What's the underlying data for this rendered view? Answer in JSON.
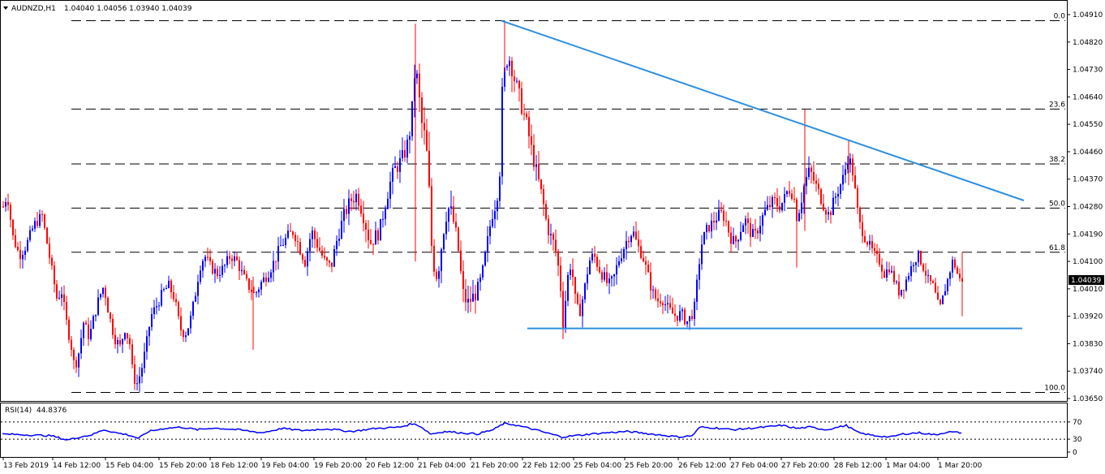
{
  "header": {
    "symbol": "AUDNZD,H1",
    "ohlc": "1.04040 1.04056 1.03940 1.04039"
  },
  "rsi_header": {
    "label": "RSI(14)",
    "value": "44.8376"
  },
  "colors": {
    "bull": "#0000ff",
    "bear": "#ff0000",
    "trendline": "#2e8fe0",
    "grid": "#000000",
    "rsi_line": "#0000ff"
  },
  "chart_data": [
    {
      "type": "candlestick",
      "title": "AUDNZD,H1",
      "yaxis_ticks": [
        "1.04910",
        "1.04820",
        "1.04730",
        "1.04640",
        "1.04550",
        "1.04460",
        "1.04370",
        "1.04280",
        "1.04190",
        "1.04100",
        "1.04010",
        "1.03920",
        "1.03830",
        "1.03740",
        "1.03650"
      ],
      "ylim": [
        1.0363,
        1.0493
      ],
      "x_tick_labels": [
        "13 Feb 2019",
        "14 Feb 12:00",
        "15 Feb 04:00",
        "15 Feb 20:00",
        "18 Feb 12:00",
        "19 Feb 04:00",
        "19 Feb 20:00",
        "20 Feb 12:00",
        "21 Feb 04:00",
        "21 Feb 20:00",
        "22 Feb 12:00",
        "25 Feb 04:00",
        "25 Feb 20:00",
        "26 Feb 12:00",
        "27 Feb 04:00",
        "27 Feb 20:00",
        "28 Feb 12:00",
        "1 Mar 04:00",
        "1 Mar 20:00"
      ],
      "current_price": "1.04039",
      "fibonacci_levels": [
        {
          "label": "0.0",
          "price": 1.0489
        },
        {
          "label": "23.6",
          "price": 1.046
        },
        {
          "label": "38.2",
          "price": 1.0442
        },
        {
          "label": "50.0",
          "price": 1.04275
        },
        {
          "label": "61.8",
          "price": 1.0413
        },
        {
          "label": "100.0",
          "price": 1.0367
        }
      ],
      "trendlines": [
        {
          "name": "resistance",
          "from": {
            "x": "21 Feb 21:00",
            "y": 1.0489
          },
          "to": {
            "x": "1 Mar 22:00",
            "y": 1.043
          }
        },
        {
          "name": "support",
          "from": {
            "x": "22 Feb 13:00",
            "y": 1.0388
          },
          "to": {
            "x": "1 Mar 23:00",
            "y": 1.0388
          }
        }
      ],
      "close_path": [
        [
          0,
          1.0428
        ],
        [
          5,
          1.0432
        ],
        [
          12,
          1.0418
        ],
        [
          20,
          1.0412
        ],
        [
          28,
          1.0415
        ],
        [
          38,
          1.0422
        ],
        [
          48,
          1.0425
        ],
        [
          58,
          1.041
        ],
        [
          66,
          1.0398
        ],
        [
          72,
          1.04
        ],
        [
          78,
          1.039
        ],
        [
          84,
          1.0382
        ],
        [
          88,
          1.0375
        ],
        [
          93,
          1.038
        ],
        [
          99,
          1.039
        ],
        [
          106,
          1.0385
        ],
        [
          112,
          1.0392
        ],
        [
          118,
          1.0398
        ],
        [
          124,
          1.0402
        ],
        [
          130,
          1.0393
        ],
        [
          137,
          1.0385
        ],
        [
          144,
          1.0382
        ],
        [
          150,
          1.0388
        ],
        [
          156,
          1.0383
        ],
        [
          160,
          1.0372
        ],
        [
          165,
          1.037
        ],
        [
          170,
          1.0374
        ],
        [
          176,
          1.0382
        ],
        [
          182,
          1.0392
        ],
        [
          190,
          1.0396
        ],
        [
          197,
          1.04
        ],
        [
          204,
          1.0402
        ],
        [
          211,
          1.0398
        ],
        [
          218,
          1.0388
        ],
        [
          224,
          1.0386
        ],
        [
          230,
          1.039
        ],
        [
          236,
          1.0398
        ],
        [
          242,
          1.0408
        ],
        [
          248,
          1.0412
        ],
        [
          256,
          1.0408
        ],
        [
          264,
          1.0406
        ],
        [
          272,
          1.0408
        ],
        [
          280,
          1.0412
        ],
        [
          288,
          1.041
        ],
        [
          296,
          1.0405
        ],
        [
          302,
          1.0402
        ],
        [
          310,
          1.0399
        ],
        [
          318,
          1.0403
        ],
        [
          326,
          1.0406
        ],
        [
          334,
          1.041
        ],
        [
          342,
          1.0415
        ],
        [
          350,
          1.0418
        ],
        [
          358,
          1.042
        ],
        [
          366,
          1.0414
        ],
        [
          372,
          1.041
        ],
        [
          380,
          1.042
        ],
        [
          388,
          1.0415
        ],
        [
          396,
          1.041
        ],
        [
          404,
          1.0408
        ],
        [
          412,
          1.0418
        ],
        [
          420,
          1.0425
        ],
        [
          428,
          1.043
        ],
        [
          436,
          1.0432
        ],
        [
          444,
          1.0425
        ],
        [
          452,
          1.0416
        ],
        [
          458,
          1.0418
        ],
        [
          464,
          1.042
        ],
        [
          470,
          1.0428
        ],
        [
          476,
          1.0435
        ],
        [
          482,
          1.044
        ],
        [
          488,
          1.0442
        ],
        [
          494,
          1.0445
        ],
        [
          500,
          1.045
        ],
        [
          504,
          1.046
        ],
        [
          508,
          1.0475
        ],
        [
          512,
          1.0465
        ],
        [
          516,
          1.0455
        ],
        [
          520,
          1.045
        ],
        [
          524,
          1.044
        ],
        [
          527,
          1.0418
        ],
        [
          530,
          1.041
        ],
        [
          535,
          1.0405
        ],
        [
          540,
          1.0415
        ],
        [
          545,
          1.0425
        ],
        [
          550,
          1.0428
        ],
        [
          556,
          1.0422
        ],
        [
          562,
          1.0412
        ],
        [
          566,
          1.04
        ],
        [
          572,
          1.0396
        ],
        [
          578,
          1.0398
        ],
        [
          584,
          1.04
        ],
        [
          590,
          1.0405
        ],
        [
          596,
          1.0415
        ],
        [
          602,
          1.0425
        ],
        [
          608,
          1.043
        ],
        [
          612,
          1.044
        ],
        [
          615,
          1.0465
        ],
        [
          618,
          1.0472
        ],
        [
          622,
          1.0478
        ],
        [
          626,
          1.0475
        ],
        [
          630,
          1.047
        ],
        [
          634,
          1.0466
        ],
        [
          638,
          1.0462
        ],
        [
          642,
          1.0458
        ],
        [
          646,
          1.0454
        ],
        [
          650,
          1.0448
        ],
        [
          655,
          1.0442
        ],
        [
          660,
          1.0436
        ],
        [
          665,
          1.043
        ],
        [
          670,
          1.0422
        ],
        [
          675,
          1.0418
        ],
        [
          680,
          1.0415
        ],
        [
          686,
          1.0405
        ],
        [
          690,
          1.039
        ],
        [
          694,
          1.04
        ],
        [
          698,
          1.041
        ],
        [
          702,
          1.0405
        ],
        [
          706,
          1.0395
        ],
        [
          710,
          1.0393
        ],
        [
          716,
          1.04
        ],
        [
          722,
          1.041
        ],
        [
          728,
          1.0412
        ],
        [
          734,
          1.0408
        ],
        [
          740,
          1.0405
        ],
        [
          746,
          1.0402
        ],
        [
          752,
          1.0404
        ],
        [
          758,
          1.041
        ],
        [
          764,
          1.0414
        ],
        [
          770,
          1.0418
        ],
        [
          776,
          1.042
        ],
        [
          782,
          1.0415
        ],
        [
          788,
          1.0412
        ],
        [
          794,
          1.0406
        ],
        [
          800,
          1.04
        ],
        [
          806,
          1.0397
        ],
        [
          812,
          1.0398
        ],
        [
          818,
          1.0395
        ],
        [
          824,
          1.0393
        ],
        [
          830,
          1.0392
        ],
        [
          836,
          1.0393
        ],
        [
          842,
          1.039
        ],
        [
          848,
          1.0392
        ],
        [
          852,
          1.0395
        ],
        [
          856,
          1.0405
        ],
        [
          860,
          1.0415
        ],
        [
          866,
          1.042
        ],
        [
          872,
          1.0422
        ],
        [
          878,
          1.0424
        ],
        [
          884,
          1.0426
        ],
        [
          890,
          1.0424
        ],
        [
          896,
          1.0418
        ],
        [
          902,
          1.0416
        ],
        [
          908,
          1.042
        ],
        [
          914,
          1.0424
        ],
        [
          920,
          1.042
        ],
        [
          926,
          1.0418
        ],
        [
          932,
          1.0422
        ],
        [
          938,
          1.0426
        ],
        [
          944,
          1.0428
        ],
        [
          950,
          1.043
        ],
        [
          956,
          1.0428
        ],
        [
          962,
          1.043
        ],
        [
          968,
          1.0434
        ],
        [
          974,
          1.0432
        ],
        [
          978,
          1.0425
        ],
        [
          982,
          1.0428
        ],
        [
          988,
          1.0436
        ],
        [
          994,
          1.044
        ],
        [
          1000,
          1.0436
        ],
        [
          1006,
          1.0432
        ],
        [
          1012,
          1.0428
        ],
        [
          1018,
          1.0425
        ],
        [
          1024,
          1.043
        ],
        [
          1030,
          1.0434
        ],
        [
          1036,
          1.0438
        ],
        [
          1042,
          1.0445
        ],
        [
          1048,
          1.0438
        ],
        [
          1052,
          1.0428
        ],
        [
          1056,
          1.0422
        ],
        [
          1062,
          1.0418
        ],
        [
          1068,
          1.0415
        ],
        [
          1074,
          1.0412
        ],
        [
          1080,
          1.041
        ],
        [
          1086,
          1.0406
        ],
        [
          1092,
          1.0408
        ],
        [
          1098,
          1.0404
        ],
        [
          1104,
          1.04
        ],
        [
          1110,
          1.0402
        ],
        [
          1116,
          1.0406
        ],
        [
          1122,
          1.041
        ],
        [
          1128,
          1.0412
        ],
        [
          1134,
          1.0408
        ],
        [
          1140,
          1.0404
        ],
        [
          1146,
          1.0402
        ],
        [
          1150,
          1.0398
        ],
        [
          1154,
          1.0394
        ],
        [
          1158,
          1.0398
        ],
        [
          1162,
          1.0402
        ],
        [
          1166,
          1.0406
        ],
        [
          1170,
          1.041
        ],
        [
          1174,
          1.0408
        ],
        [
          1178,
          1.0404
        ],
        [
          1182,
          1.0404
        ]
      ],
      "volatility": [
        [
          0,
          4
        ],
        [
          170,
          4
        ],
        [
          300,
          4
        ],
        [
          500,
          6
        ],
        [
          520,
          8
        ],
        [
          600,
          5
        ],
        [
          620,
          7
        ],
        [
          690,
          5
        ],
        [
          850,
          4
        ],
        [
          980,
          5
        ],
        [
          1050,
          4
        ],
        [
          1182,
          3
        ]
      ],
      "wicks": [
        {
          "x": 508,
          "high": 1.0488,
          "low": 1.041
        },
        {
          "x": 618,
          "high": 1.0489,
          "low": 1.0472
        },
        {
          "x": 988,
          "high": 1.046,
          "low": 1.042
        },
        {
          "x": 978,
          "high": 1.043,
          "low": 1.0408
        },
        {
          "x": 1042,
          "high": 1.045,
          "low": 1.0435
        },
        {
          "x": 308,
          "high": 1.0405,
          "low": 1.0381
        },
        {
          "x": 1182,
          "high": 1.0413,
          "low": 1.0392
        }
      ],
      "grid": false
    },
    {
      "type": "line",
      "title": "RSI(14)",
      "yaxis_ticks": [
        "70",
        "30",
        "0"
      ],
      "ylim": [
        0,
        100
      ],
      "series": [
        {
          "name": "RSI(14)",
          "points": [
            [
              0,
              42
            ],
            [
              30,
              40
            ],
            [
              60,
              38
            ],
            [
              80,
              28
            ],
            [
              95,
              35
            ],
            [
              110,
              40
            ],
            [
              125,
              52
            ],
            [
              140,
              45
            ],
            [
              155,
              40
            ],
            [
              168,
              32
            ],
            [
              180,
              48
            ],
            [
              200,
              55
            ],
            [
              220,
              58
            ],
            [
              240,
              52
            ],
            [
              260,
              56
            ],
            [
              290,
              52
            ],
            [
              320,
              45
            ],
            [
              345,
              55
            ],
            [
              370,
              50
            ],
            [
              400,
              54
            ],
            [
              430,
              48
            ],
            [
              460,
              55
            ],
            [
              490,
              58
            ],
            [
              505,
              66
            ],
            [
              515,
              60
            ],
            [
              528,
              42
            ],
            [
              545,
              48
            ],
            [
              565,
              45
            ],
            [
              585,
              42
            ],
            [
              605,
              52
            ],
            [
              618,
              66
            ],
            [
              630,
              64
            ],
            [
              650,
              55
            ],
            [
              670,
              45
            ],
            [
              690,
              35
            ],
            [
              705,
              38
            ],
            [
              725,
              42
            ],
            [
              745,
              45
            ],
            [
              770,
              48
            ],
            [
              790,
              44
            ],
            [
              810,
              40
            ],
            [
              835,
              35
            ],
            [
              850,
              38
            ],
            [
              860,
              58
            ],
            [
              880,
              56
            ],
            [
              900,
              52
            ],
            [
              920,
              55
            ],
            [
              940,
              58
            ],
            [
              960,
              62
            ],
            [
              980,
              55
            ],
            [
              995,
              58
            ],
            [
              1015,
              52
            ],
            [
              1040,
              62
            ],
            [
              1055,
              45
            ],
            [
              1075,
              38
            ],
            [
              1095,
              35
            ],
            [
              1110,
              42
            ],
            [
              1130,
              45
            ],
            [
              1150,
              40
            ],
            [
              1165,
              47
            ],
            [
              1182,
              45
            ]
          ]
        }
      ]
    }
  ]
}
